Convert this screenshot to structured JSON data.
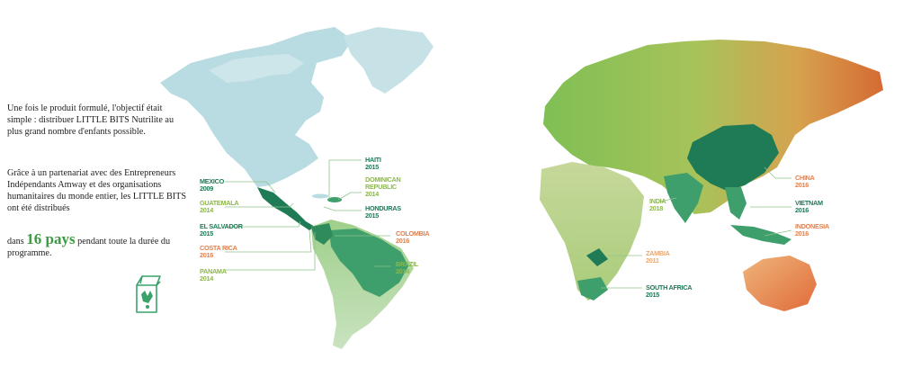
{
  "intro": {
    "paragraph_1": "Une fois le produit formulé, l'objectif était simple : distribuer LITTLE BITS Nutrilite au plus grand nombre d'enfants possible.",
    "paragraph_2": "Grâce à un partenariat avec des Entrepreneurs Indépendants Amway et des organisations humanitaires du monde entier, les LITTLE BITS ont été distribués",
    "paragraph_3_before": "dans",
    "highlight": "16 pays",
    "paragraph_3_after": "pendant toute la durée du programme."
  },
  "colors": {
    "green_dark": "#1f7a56",
    "green_light": "#8cb84a",
    "orange": "#e2804d",
    "americas_blue": "#aed6df",
    "highlight_green": "#3e9e6c"
  },
  "markers": {
    "mexico": {
      "country": "MEXICO",
      "year": "2009"
    },
    "guatemala": {
      "country": "GUATEMALA",
      "year": "2014"
    },
    "el_salvador": {
      "country": "EL SALVADOR",
      "year": "2015"
    },
    "costa_rica": {
      "country": "COSTA RICA",
      "year": "2016"
    },
    "panama": {
      "country": "PANAMA",
      "year": "2014"
    },
    "haiti": {
      "country": "HAITI",
      "year": "2015"
    },
    "dominican_republic": {
      "country_line1": "DOMINICAN",
      "country_line2": "REPUBLIC",
      "year": "2014"
    },
    "honduras": {
      "country": "HONDURAS",
      "year": "2015"
    },
    "colombia": {
      "country": "COLOMBIA",
      "year": "2016"
    },
    "brazil": {
      "country": "BRAZIL",
      "year": "2014"
    },
    "india": {
      "country": "INDIA",
      "year": "2018"
    },
    "china": {
      "country": "CHINA",
      "year": "2016"
    },
    "vietnam": {
      "country": "VIETNAM",
      "year": "2016"
    },
    "indonesia": {
      "country": "INDONESIA",
      "year": "2016"
    },
    "zambia": {
      "country": "ZAMBIA",
      "year": "2011"
    },
    "south_africa": {
      "country": "SOUTH AFRICA",
      "year": "2015"
    }
  },
  "icon": "little-bits-box-icon"
}
